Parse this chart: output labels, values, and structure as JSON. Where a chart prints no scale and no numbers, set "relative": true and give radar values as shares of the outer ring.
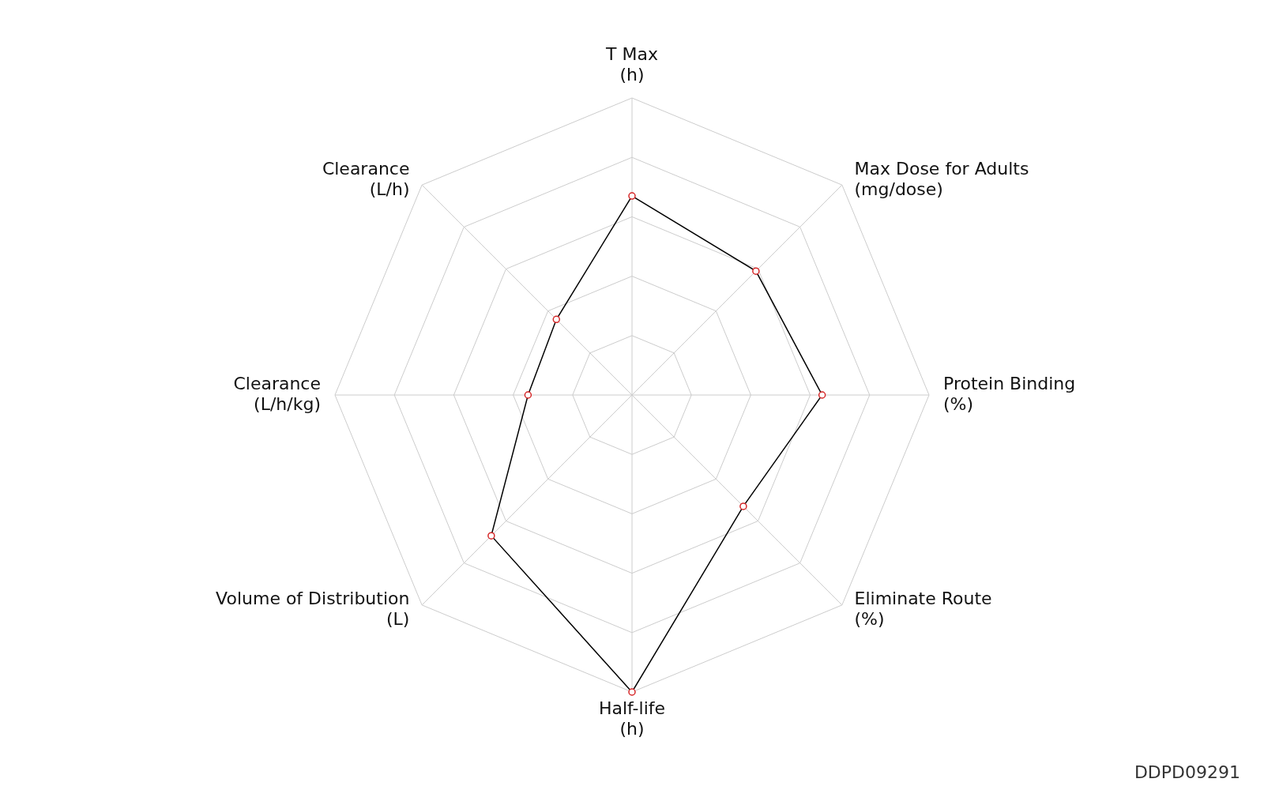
{
  "chart_data": {
    "type": "radar",
    "relative": true,
    "categories": [
      "T Max\n(h)",
      "Max Dose for Adults\n(mg/dose)",
      "Protein Binding\n(%)",
      "Eliminate Route\n(%)",
      "Half-life\n(h)",
      "Volume of Distribution\n(L)",
      "Clearance\n(L/h/kg)",
      "Clearance\n(L/h)"
    ],
    "series": [
      {
        "color": "#000000",
        "colors": [
          "#d62728",
          "#d62728",
          "#d62728",
          "#d62728",
          "#d62728",
          "#d62728",
          "#d62728",
          "#d62728"
        ],
        "values": [
          0.67,
          0.59,
          0.64,
          0.53,
          1,
          0.67,
          0.35,
          0.36
        ]
      }
    ],
    "grid": true,
    "marker": "circle",
    "annotations": [
      "DDPD09291"
    ]
  }
}
